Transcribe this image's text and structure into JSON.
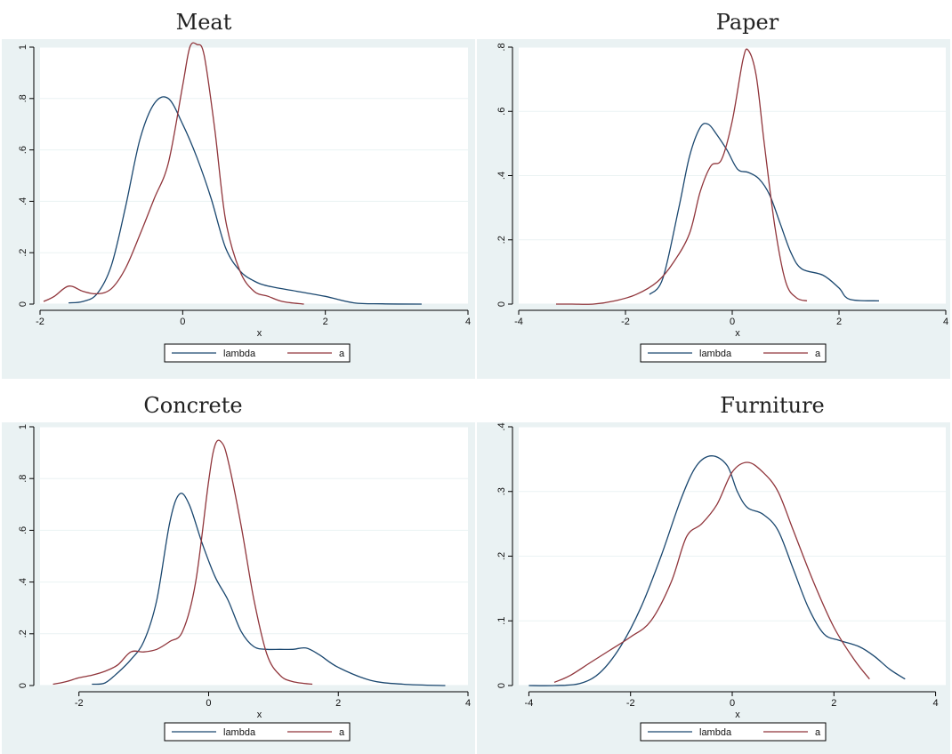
{
  "colors": {
    "background": "#eaf2f3",
    "plot_area": "#ffffff",
    "grid": "#eaf2f3",
    "lambda": "#1a476f",
    "a": "#90353b"
  },
  "chart_data": [
    {
      "type": "line",
      "title": "Meat",
      "xlabel": "x",
      "ylabel": "",
      "xlim": [
        -2,
        4
      ],
      "ylim": [
        0,
        1
      ],
      "xticks": [
        -2,
        0,
        2,
        4
      ],
      "xtick_labels": [
        "-2",
        "0",
        "2",
        "4"
      ],
      "yticks": [
        0,
        0.2,
        0.4,
        0.6,
        0.8,
        1
      ],
      "ytick_labels": [
        "0",
        ".2",
        ".4",
        ".6",
        ".8",
        "1"
      ],
      "grid": true,
      "legend": "bottom",
      "series": [
        {
          "name": "lambda",
          "color": "#1a476f",
          "x": [
            -1.6,
            -1.4,
            -1.2,
            -1.0,
            -0.8,
            -0.6,
            -0.4,
            -0.2,
            0.0,
            0.2,
            0.4,
            0.6,
            0.8,
            1.0,
            1.2,
            1.6,
            2.0,
            2.4,
            2.8,
            3.35
          ],
          "y": [
            0.005,
            0.01,
            0.04,
            0.15,
            0.38,
            0.64,
            0.78,
            0.8,
            0.7,
            0.57,
            0.41,
            0.22,
            0.13,
            0.09,
            0.07,
            0.05,
            0.03,
            0.005,
            0.001,
            0.0
          ]
        },
        {
          "name": "a",
          "color": "#90353b",
          "x": [
            -1.95,
            -1.8,
            -1.6,
            -1.4,
            -1.2,
            -1.0,
            -0.8,
            -0.6,
            -0.4,
            -0.2,
            0.0,
            0.1,
            0.2,
            0.3,
            0.45,
            0.6,
            0.8,
            1.0,
            1.2,
            1.4,
            1.7
          ],
          "y": [
            0.01,
            0.03,
            0.07,
            0.05,
            0.04,
            0.06,
            0.14,
            0.27,
            0.41,
            0.55,
            0.85,
            1.0,
            1.01,
            0.97,
            0.68,
            0.33,
            0.13,
            0.05,
            0.03,
            0.01,
            0.0
          ]
        }
      ]
    },
    {
      "type": "line",
      "title": "Paper",
      "xlabel": "x",
      "ylabel": "",
      "xlim": [
        -4,
        4
      ],
      "ylim": [
        0,
        0.8
      ],
      "xticks": [
        -4,
        -2,
        0,
        2,
        4
      ],
      "xtick_labels": [
        "-4",
        "-2",
        "0",
        "2",
        "4"
      ],
      "yticks": [
        0,
        0.2,
        0.4,
        0.6,
        0.8
      ],
      "ytick_labels": [
        "0",
        ".2",
        ".4",
        ".6",
        ".8"
      ],
      "grid": true,
      "legend": "bottom",
      "series": [
        {
          "name": "lambda",
          "color": "#1a476f",
          "x": [
            -1.55,
            -1.3,
            -1.0,
            -0.8,
            -0.6,
            -0.45,
            -0.3,
            -0.1,
            0.1,
            0.3,
            0.5,
            0.7,
            0.9,
            1.1,
            1.3,
            1.7,
            2.0,
            2.2,
            2.75
          ],
          "y": [
            0.03,
            0.08,
            0.3,
            0.46,
            0.55,
            0.56,
            0.53,
            0.48,
            0.42,
            0.41,
            0.39,
            0.34,
            0.25,
            0.16,
            0.11,
            0.09,
            0.05,
            0.015,
            0.01
          ]
        },
        {
          "name": "a",
          "color": "#90353b",
          "x": [
            -3.3,
            -3.0,
            -2.6,
            -2.2,
            -1.8,
            -1.4,
            -1.1,
            -0.8,
            -0.6,
            -0.4,
            -0.2,
            0.0,
            0.2,
            0.3,
            0.45,
            0.6,
            0.8,
            1.0,
            1.2,
            1.4
          ],
          "y": [
            0.0,
            0.0,
            0.0,
            0.01,
            0.03,
            0.07,
            0.13,
            0.22,
            0.35,
            0.43,
            0.45,
            0.57,
            0.76,
            0.79,
            0.71,
            0.5,
            0.24,
            0.07,
            0.02,
            0.01
          ]
        }
      ]
    },
    {
      "type": "line",
      "title": "Concrete",
      "xlabel": "x",
      "ylabel": "",
      "xlim": [
        -2.6,
        4
      ],
      "ylim": [
        0,
        1
      ],
      "xticks": [
        -2,
        0,
        2,
        4
      ],
      "xtick_labels": [
        "-2",
        "0",
        "2",
        "4"
      ],
      "yticks": [
        0,
        0.2,
        0.4,
        0.6,
        0.8,
        1
      ],
      "ytick_labels": [
        "0",
        ".2",
        ".4",
        ".6",
        ".8",
        "1"
      ],
      "grid": true,
      "legend": "bottom",
      "series": [
        {
          "name": "lambda",
          "color": "#1a476f",
          "x": [
            -1.8,
            -1.6,
            -1.4,
            -1.2,
            -1.0,
            -0.8,
            -0.6,
            -0.45,
            -0.3,
            -0.1,
            0.1,
            0.3,
            0.5,
            0.7,
            0.9,
            1.1,
            1.3,
            1.5,
            1.7,
            2.0,
            2.5,
            3.0,
            3.65
          ],
          "y": [
            0.005,
            0.01,
            0.05,
            0.1,
            0.17,
            0.33,
            0.63,
            0.74,
            0.7,
            0.55,
            0.42,
            0.33,
            0.21,
            0.15,
            0.14,
            0.14,
            0.14,
            0.145,
            0.12,
            0.07,
            0.02,
            0.005,
            0.0
          ]
        },
        {
          "name": "a",
          "color": "#90353b",
          "x": [
            -2.4,
            -2.2,
            -2.0,
            -1.8,
            -1.6,
            -1.4,
            -1.2,
            -1.0,
            -0.8,
            -0.6,
            -0.4,
            -0.2,
            0.0,
            0.1,
            0.2,
            0.3,
            0.5,
            0.7,
            0.9,
            1.1,
            1.3,
            1.6
          ],
          "y": [
            0.005,
            0.015,
            0.03,
            0.04,
            0.055,
            0.08,
            0.13,
            0.13,
            0.14,
            0.17,
            0.21,
            0.4,
            0.79,
            0.93,
            0.94,
            0.87,
            0.62,
            0.33,
            0.12,
            0.04,
            0.015,
            0.005
          ]
        }
      ]
    },
    {
      "type": "line",
      "title": "Furniture",
      "xlabel": "x",
      "ylabel": "",
      "xlim": [
        -4.2,
        4.2
      ],
      "ylim": [
        0,
        0.4
      ],
      "xticks": [
        -4,
        -2,
        0,
        2,
        4
      ],
      "xtick_labels": [
        "-4",
        "-2",
        "0",
        "2",
        "4"
      ],
      "yticks": [
        0,
        0.1,
        0.2,
        0.3,
        0.4
      ],
      "ytick_labels": [
        "0",
        ".1",
        ".2",
        ".3",
        ".4"
      ],
      "grid": true,
      "legend": "bottom",
      "series": [
        {
          "name": "lambda",
          "color": "#1a476f",
          "x": [
            -4.0,
            -3.5,
            -3.0,
            -2.6,
            -2.2,
            -1.8,
            -1.4,
            -1.0,
            -0.7,
            -0.4,
            -0.1,
            0.1,
            0.3,
            0.6,
            0.9,
            1.2,
            1.5,
            1.8,
            2.1,
            2.5,
            2.8,
            3.1,
            3.4
          ],
          "y": [
            0.0,
            0.0,
            0.003,
            0.02,
            0.06,
            0.12,
            0.2,
            0.29,
            0.34,
            0.355,
            0.34,
            0.3,
            0.275,
            0.265,
            0.24,
            0.18,
            0.12,
            0.08,
            0.07,
            0.06,
            0.045,
            0.025,
            0.01
          ]
        },
        {
          "name": "a",
          "color": "#90353b",
          "x": [
            -3.5,
            -3.2,
            -2.8,
            -2.4,
            -2.0,
            -1.6,
            -1.2,
            -0.9,
            -0.6,
            -0.3,
            0.0,
            0.3,
            0.6,
            0.9,
            1.2,
            1.6,
            2.0,
            2.4,
            2.7
          ],
          "y": [
            0.005,
            0.015,
            0.035,
            0.055,
            0.075,
            0.1,
            0.16,
            0.23,
            0.25,
            0.28,
            0.33,
            0.345,
            0.33,
            0.3,
            0.24,
            0.16,
            0.09,
            0.04,
            0.01
          ]
        }
      ]
    }
  ]
}
